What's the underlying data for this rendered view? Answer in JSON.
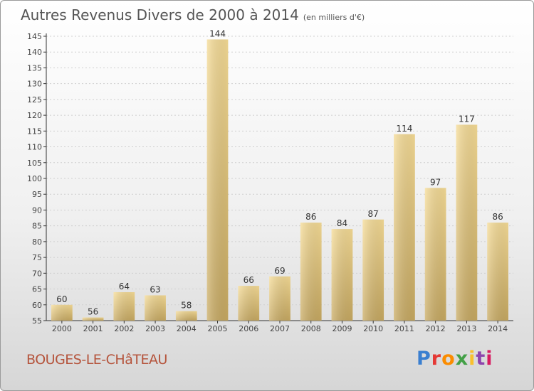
{
  "header": {
    "title": "Autres Revenus Divers de 2000 à 2014",
    "unit": "(en milliers d'€)"
  },
  "footer": {
    "place": "BOUGES-LE-CHâTEAU",
    "brand": "Proxiti",
    "brand_colors": [
      "#3a7fd0",
      "#e53935",
      "#fb8c00",
      "#43a047",
      "#f9c02d",
      "#8e44ad",
      "#d81b60"
    ]
  },
  "chart_data": {
    "type": "bar",
    "title": "Autres Revenus Divers de 2000 à 2014",
    "subtitle": "(en milliers d'€)",
    "categories": [
      "2000",
      "2001",
      "2002",
      "2003",
      "2004",
      "2005",
      "2006",
      "2007",
      "2008",
      "2009",
      "2010",
      "2011",
      "2012",
      "2013",
      "2014"
    ],
    "values": [
      60,
      56,
      64,
      63,
      58,
      144,
      66,
      69,
      86,
      84,
      87,
      114,
      97,
      117,
      86
    ],
    "ylim": [
      55,
      145
    ],
    "yticks": [
      55,
      60,
      65,
      70,
      75,
      80,
      85,
      90,
      95,
      100,
      105,
      110,
      115,
      120,
      125,
      130,
      135,
      140,
      145
    ],
    "grid": true,
    "bar_color_light": "#f6dc96",
    "bar_color_dark": "#c8aa62"
  }
}
